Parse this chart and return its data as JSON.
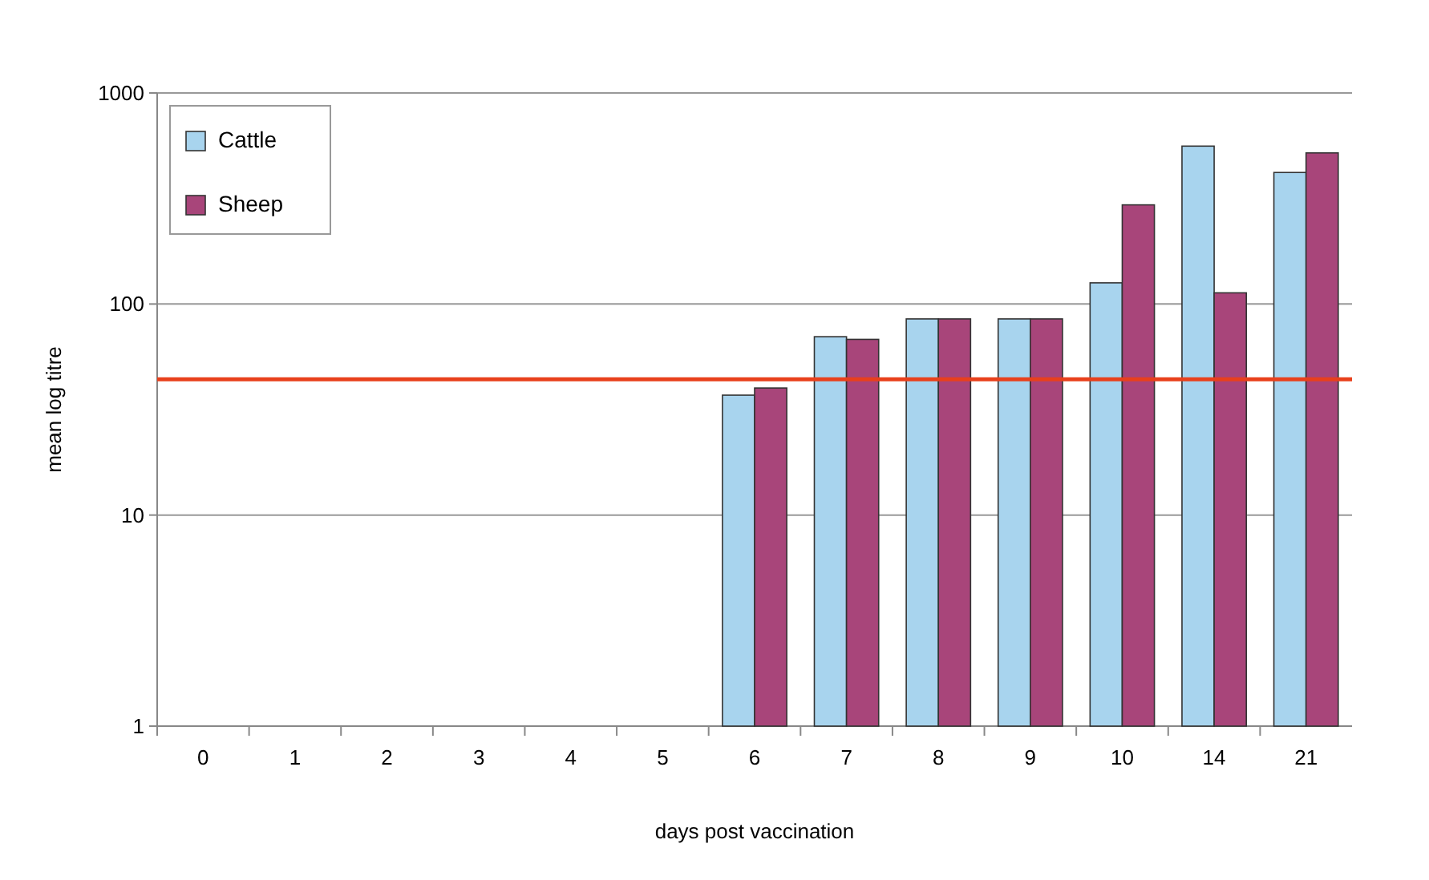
{
  "chart_data": {
    "type": "bar",
    "xlabel": "days post vaccination",
    "ylabel": "mean log titre",
    "categories": [
      "0",
      "1",
      "2",
      "3",
      "4",
      "5",
      "6",
      "7",
      "8",
      "9",
      "10",
      "14",
      "21"
    ],
    "series": [
      {
        "name": "Cattle",
        "color": "#a8d4ee",
        "values": [
          1,
          1,
          1,
          1,
          1,
          1,
          37,
          70,
          85,
          85,
          126,
          560,
          420
        ]
      },
      {
        "name": "Sheep",
        "color": "#a8457a",
        "values": [
          1,
          1,
          1,
          1,
          1,
          1,
          40,
          68,
          85,
          85,
          295,
          113,
          520
        ]
      }
    ],
    "log": true,
    "ylim": [
      1,
      1000
    ],
    "yticks": [
      1,
      10,
      100,
      1000
    ],
    "grid": "y",
    "legend": "top left",
    "ref_lines": [
      {
        "axis": "y",
        "value": 44,
        "color": "#e8401c"
      }
    ]
  }
}
